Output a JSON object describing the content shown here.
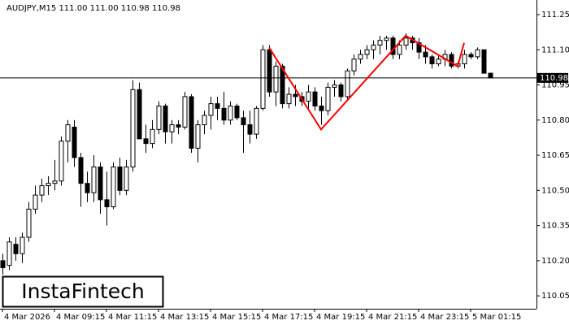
{
  "chart_data": {
    "type": "candlestick",
    "title": "AUDJPY,M15  111.00 111.00 110.98 110.98",
    "categories": [
      "4 Mar 2026",
      null,
      null,
      null,
      null,
      null,
      null,
      null,
      "4 Mar 09:15",
      null,
      null,
      null,
      null,
      null,
      null,
      null,
      "4 Mar 11:15",
      null,
      null,
      null,
      null,
      null,
      null,
      null,
      "4 Mar 13:15",
      null,
      null,
      null,
      null,
      null,
      null,
      null,
      "4 Mar 15:15",
      null,
      null,
      null,
      null,
      null,
      null,
      null,
      "4 Mar 17:15",
      null,
      null,
      null,
      null,
      null,
      null,
      null,
      "4 Mar 19:15",
      null,
      null,
      null,
      null,
      null,
      null,
      null,
      "4 Mar 21:15",
      null,
      null,
      null,
      null,
      null,
      null,
      null,
      "4 Mar 23:15",
      null,
      null,
      null,
      null,
      null,
      null,
      null,
      "5 Mar 01:15",
      null,
      null,
      null
    ],
    "open": [
      110.2,
      110.18,
      110.27,
      110.23,
      110.3,
      110.42,
      110.48,
      110.52,
      110.53,
      110.54,
      110.71,
      110.77,
      110.64,
      110.53,
      110.49,
      110.6,
      110.46,
      110.43,
      110.6,
      110.5,
      110.6,
      110.93,
      110.72,
      110.7,
      110.76,
      110.86,
      110.75,
      110.78,
      110.77,
      110.9,
      110.68,
      110.78,
      110.82,
      110.87,
      110.85,
      110.8,
      110.86,
      110.81,
      110.78,
      110.74,
      110.85,
      111.1,
      110.92,
      111.03,
      110.87,
      110.91,
      110.9,
      110.88,
      110.92,
      110.86,
      110.84,
      110.94,
      110.95,
      110.9,
      111.01,
      111.06,
      111.08,
      111.1,
      111.12,
      111.14,
      111.15,
      111.08,
      111.12,
      111.15,
      111.13,
      111.09,
      111.07,
      111.04,
      111.06,
      111.08,
      111.03,
      111.04,
      111.08,
      111.07,
      111.1,
      111.0
    ],
    "high": [
      110.23,
      110.3,
      110.3,
      110.32,
      110.45,
      110.52,
      110.55,
      110.56,
      110.63,
      110.73,
      110.8,
      110.8,
      110.66,
      110.58,
      110.65,
      110.62,
      110.58,
      110.62,
      110.64,
      110.63,
      110.97,
      110.96,
      110.78,
      110.8,
      110.88,
      110.87,
      110.8,
      110.8,
      110.92,
      110.91,
      110.8,
      110.84,
      110.9,
      110.9,
      110.92,
      110.88,
      110.87,
      110.84,
      110.84,
      110.86,
      111.12,
      111.12,
      111.05,
      111.04,
      110.94,
      110.95,
      110.92,
      110.95,
      110.94,
      110.9,
      110.96,
      110.97,
      110.96,
      111.02,
      111.08,
      111.1,
      111.12,
      111.14,
      111.16,
      111.16,
      111.16,
      111.14,
      111.17,
      111.16,
      111.15,
      111.12,
      111.08,
      111.08,
      111.1,
      111.09,
      111.05,
      111.1,
      111.09,
      111.11,
      111.1,
      111.0
    ],
    "low": [
      110.14,
      110.16,
      110.2,
      110.19,
      110.28,
      110.4,
      110.45,
      110.48,
      110.5,
      110.52,
      110.62,
      110.6,
      110.43,
      110.45,
      110.45,
      110.4,
      110.35,
      110.42,
      110.48,
      110.48,
      110.58,
      110.72,
      110.66,
      110.68,
      110.74,
      110.7,
      110.7,
      110.74,
      110.76,
      110.66,
      110.62,
      110.74,
      110.76,
      110.8,
      110.78,
      110.78,
      110.8,
      110.66,
      110.7,
      110.72,
      110.84,
      110.9,
      110.86,
      110.85,
      110.85,
      110.86,
      110.86,
      110.84,
      110.84,
      110.78,
      110.82,
      110.9,
      110.88,
      110.89,
      110.99,
      111.04,
      111.06,
      111.06,
      111.08,
      111.1,
      111.06,
      111.06,
      111.1,
      111.1,
      111.06,
      111.04,
      111.02,
      111.03,
      111.03,
      111.02,
      111.02,
      111.02,
      111.06,
      111.06,
      111.0,
      110.98
    ],
    "close": [
      110.17,
      110.28,
      110.23,
      110.3,
      110.42,
      110.48,
      110.52,
      110.53,
      110.54,
      110.71,
      110.78,
      110.64,
      110.53,
      110.49,
      110.6,
      110.46,
      110.43,
      110.6,
      110.5,
      110.6,
      110.93,
      110.72,
      110.7,
      110.76,
      110.86,
      110.75,
      110.78,
      110.77,
      110.9,
      110.68,
      110.78,
      110.82,
      110.87,
      110.85,
      110.8,
      110.86,
      110.81,
      110.78,
      110.74,
      110.85,
      111.1,
      110.92,
      111.03,
      110.87,
      110.91,
      110.9,
      110.88,
      110.92,
      110.86,
      110.84,
      110.94,
      110.95,
      110.9,
      111.01,
      111.06,
      111.08,
      111.1,
      111.12,
      111.14,
      111.15,
      111.08,
      111.12,
      111.15,
      111.13,
      111.09,
      111.07,
      111.04,
      111.06,
      111.08,
      111.03,
      111.04,
      111.08,
      111.07,
      111.1,
      111.0,
      110.98
    ],
    "ylim": [
      109.995,
      111.295
    ],
    "yticks": [
      111.25,
      {
        "value": 111.1,
        "label": "111.10"
      },
      110.95,
      {
        "value": 110.8,
        "label": "110.80"
      },
      110.65,
      {
        "value": 110.5,
        "label": "110.50"
      },
      110.35,
      {
        "value": 110.2,
        "label": "110.20"
      },
      110.05
    ],
    "last_price": 110.98,
    "pattern": {
      "color": "#ff0000",
      "x": [
        41,
        49,
        62,
        70,
        71
      ],
      "y": [
        111.11,
        110.76,
        111.16,
        111.03,
        111.13
      ]
    },
    "watermark": "InstaFintech"
  }
}
